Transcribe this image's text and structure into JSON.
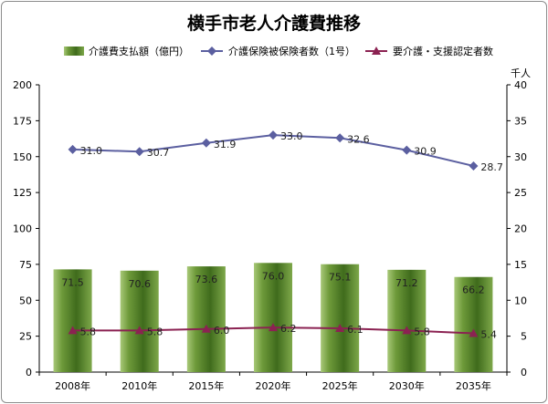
{
  "chart_data": {
    "type": "bar",
    "title": "横手市老人介護費推移",
    "categories": [
      "2008年",
      "2010年",
      "2015年",
      "2020年",
      "2025年",
      "2030年",
      "2035年"
    ],
    "series": [
      {
        "name": "介護費支払額（億円）",
        "kind": "bar",
        "axis": "left",
        "values": [
          71.5,
          70.6,
          73.6,
          76.0,
          75.1,
          71.2,
          66.2
        ],
        "labels": [
          "71.5",
          "70.6",
          "73.6",
          "76.0",
          "75.1",
          "71.2",
          "66.2"
        ],
        "color": "#6e9a3a"
      },
      {
        "name": "介護保険被保険者数（1号）",
        "kind": "line",
        "axis": "right",
        "marker": "diamond",
        "values": [
          31.0,
          30.7,
          31.9,
          33.0,
          32.6,
          30.9,
          28.7
        ],
        "labels": [
          "31.0",
          "30.7",
          "31.9",
          "33.0",
          "32.6",
          "30.9",
          "28.7"
        ],
        "color": "#5b5fa0"
      },
      {
        "name": "要介護・支援認定者数",
        "kind": "line",
        "axis": "right",
        "marker": "triangle",
        "values": [
          5.8,
          5.8,
          6.0,
          6.2,
          6.1,
          5.8,
          5.4
        ],
        "labels": [
          "5.8",
          "5.8",
          "6.0",
          "6.2",
          "6.1",
          "5.8",
          "5.4"
        ],
        "color": "#8b2252"
      }
    ],
    "y_left": {
      "min": 0,
      "max": 200,
      "ticks": [
        "0",
        "25",
        "50",
        "75",
        "100",
        "125",
        "150",
        "175",
        "200"
      ]
    },
    "y_right": {
      "min": 0,
      "max": 40,
      "unit": "千人",
      "ticks": [
        "0",
        "5",
        "10",
        "15",
        "20",
        "25",
        "30",
        "35",
        "40"
      ]
    },
    "grid": false,
    "legend": "top"
  }
}
